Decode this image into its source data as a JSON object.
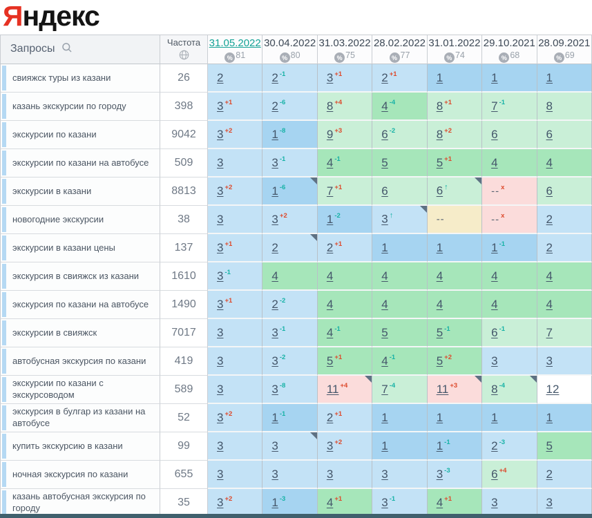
{
  "logo": {
    "first_letter": "Я",
    "rest": "ндекс"
  },
  "colors": {
    "logo_red": "#e63223",
    "selected_date": "#13a295",
    "change_up_teal": "#17b2a6",
    "change_down_red": "#dd4a2c",
    "bg_pos_1": "#a6d4f1",
    "bg_pos_2_3": "#c3e2f6",
    "bg_pos_4_5": "#a6e6ba",
    "bg_pos_6_10": "#c9efd7",
    "bg_dropped": "#fbdcdb",
    "bg_not_found": "#f6ecc9"
  },
  "table": {
    "queries_header": "Запросы",
    "frequency_header": "Частота",
    "dates": [
      {
        "label": "31.05.2022",
        "coverage": "81",
        "selected": true
      },
      {
        "label": "30.04.2022",
        "coverage": "80",
        "selected": false
      },
      {
        "label": "31.03.2022",
        "coverage": "75",
        "selected": false
      },
      {
        "label": "28.02.2022",
        "coverage": "77",
        "selected": false
      },
      {
        "label": "31.01.2022",
        "coverage": "74",
        "selected": false
      },
      {
        "label": "29.10.2021",
        "coverage": "68",
        "selected": false
      },
      {
        "label": "28.09.2021",
        "coverage": "69",
        "selected": false
      }
    ],
    "rows": [
      {
        "query": "свияжск туры из казани",
        "freq": "26",
        "cells": [
          {
            "pos": "2",
            "bg": "b"
          },
          {
            "pos": "2",
            "chg": "-1",
            "dir": "up",
            "bg": "b"
          },
          {
            "pos": "3",
            "chg": "+1",
            "dir": "down",
            "bg": "b"
          },
          {
            "pos": "2",
            "chg": "+1",
            "dir": "down",
            "bg": "b"
          },
          {
            "pos": "1",
            "bg": "B"
          },
          {
            "pos": "1",
            "bg": "B"
          },
          {
            "pos": "1",
            "bg": "B"
          }
        ]
      },
      {
        "query": "казань экскурсии по городу",
        "freq": "398",
        "cells": [
          {
            "pos": "3",
            "chg": "+1",
            "dir": "down",
            "bg": "b"
          },
          {
            "pos": "2",
            "chg": "-6",
            "dir": "up",
            "bg": "b"
          },
          {
            "pos": "8",
            "chg": "+4",
            "dir": "down",
            "bg": "g"
          },
          {
            "pos": "4",
            "chg": "-4",
            "dir": "up",
            "bg": "G"
          },
          {
            "pos": "8",
            "chg": "+1",
            "dir": "down",
            "bg": "g"
          },
          {
            "pos": "7",
            "chg": "-1",
            "dir": "up",
            "bg": "g"
          },
          {
            "pos": "8",
            "bg": "g"
          }
        ]
      },
      {
        "query": "экскурсии по казани",
        "freq": "9042",
        "cells": [
          {
            "pos": "3",
            "chg": "+2",
            "dir": "down",
            "bg": "b"
          },
          {
            "pos": "1",
            "chg": "-8",
            "dir": "up",
            "bg": "B"
          },
          {
            "pos": "9",
            "chg": "+3",
            "dir": "down",
            "bg": "g"
          },
          {
            "pos": "6",
            "chg": "-2",
            "dir": "up",
            "bg": "g"
          },
          {
            "pos": "8",
            "chg": "+2",
            "dir": "down",
            "bg": "g"
          },
          {
            "pos": "6",
            "bg": "g"
          },
          {
            "pos": "6",
            "bg": "g"
          }
        ]
      },
      {
        "query": "экскурсии по казани на автобусе",
        "freq": "509",
        "cells": [
          {
            "pos": "3",
            "bg": "b"
          },
          {
            "pos": "3",
            "chg": "-1",
            "dir": "up",
            "bg": "b"
          },
          {
            "pos": "4",
            "chg": "-1",
            "dir": "up",
            "bg": "G"
          },
          {
            "pos": "5",
            "bg": "G"
          },
          {
            "pos": "5",
            "chg": "+1",
            "dir": "down",
            "bg": "G"
          },
          {
            "pos": "4",
            "bg": "G"
          },
          {
            "pos": "4",
            "bg": "G"
          }
        ]
      },
      {
        "query": "экскурсии в казани",
        "freq": "8813",
        "cells": [
          {
            "pos": "3",
            "chg": "+2",
            "dir": "down",
            "bg": "b"
          },
          {
            "pos": "1",
            "chg": "-6",
            "dir": "up",
            "bg": "B",
            "flag": true
          },
          {
            "pos": "7",
            "chg": "+1",
            "dir": "down",
            "bg": "g"
          },
          {
            "pos": "6",
            "bg": "g"
          },
          {
            "pos": "6",
            "chg": "↑",
            "dir": "up",
            "bg": "g",
            "flag": true
          },
          {
            "pos": "--",
            "chg": "x",
            "dir": "down",
            "bg": "p"
          },
          {
            "pos": "6",
            "bg": "g"
          }
        ]
      },
      {
        "query": "новогодние экскурсии",
        "freq": "38",
        "cells": [
          {
            "pos": "3",
            "bg": "b"
          },
          {
            "pos": "3",
            "chg": "+2",
            "dir": "down",
            "bg": "b"
          },
          {
            "pos": "1",
            "chg": "-2",
            "dir": "up",
            "bg": "B"
          },
          {
            "pos": "3",
            "chg": "↑",
            "dir": "up",
            "bg": "b",
            "flag": true
          },
          {
            "pos": "--",
            "bg": "y"
          },
          {
            "pos": "--",
            "chg": "x",
            "dir": "down",
            "bg": "p"
          },
          {
            "pos": "2",
            "bg": "b"
          }
        ]
      },
      {
        "query": "экскурсии в казани цены",
        "freq": "137",
        "cells": [
          {
            "pos": "3",
            "chg": "+1",
            "dir": "down",
            "bg": "b"
          },
          {
            "pos": "2",
            "bg": "b",
            "flag": true
          },
          {
            "pos": "2",
            "chg": "+1",
            "dir": "down",
            "bg": "b"
          },
          {
            "pos": "1",
            "bg": "B"
          },
          {
            "pos": "1",
            "bg": "B"
          },
          {
            "pos": "1",
            "chg": "-1",
            "dir": "up",
            "bg": "B"
          },
          {
            "pos": "2",
            "bg": "b"
          }
        ]
      },
      {
        "query": "экскурсия в свияжск из казани",
        "freq": "1610",
        "cells": [
          {
            "pos": "3",
            "chg": "-1",
            "dir": "up",
            "bg": "b"
          },
          {
            "pos": "4",
            "bg": "G"
          },
          {
            "pos": "4",
            "bg": "G"
          },
          {
            "pos": "4",
            "bg": "G"
          },
          {
            "pos": "4",
            "bg": "G"
          },
          {
            "pos": "4",
            "bg": "G"
          },
          {
            "pos": "4",
            "bg": "G"
          }
        ]
      },
      {
        "query": "экскурсия по казани на автобусе",
        "freq": "1490",
        "cells": [
          {
            "pos": "3",
            "chg": "+1",
            "dir": "down",
            "bg": "b"
          },
          {
            "pos": "2",
            "chg": "-2",
            "dir": "up",
            "bg": "b"
          },
          {
            "pos": "4",
            "bg": "G"
          },
          {
            "pos": "4",
            "bg": "G"
          },
          {
            "pos": "4",
            "bg": "G"
          },
          {
            "pos": "4",
            "bg": "G"
          },
          {
            "pos": "4",
            "bg": "G"
          }
        ]
      },
      {
        "query": "экскурсии в свияжск",
        "freq": "7017",
        "cells": [
          {
            "pos": "3",
            "bg": "b"
          },
          {
            "pos": "3",
            "chg": "-1",
            "dir": "up",
            "bg": "b"
          },
          {
            "pos": "4",
            "chg": "-1",
            "dir": "up",
            "bg": "G"
          },
          {
            "pos": "5",
            "bg": "G"
          },
          {
            "pos": "5",
            "chg": "-1",
            "dir": "up",
            "bg": "G"
          },
          {
            "pos": "6",
            "chg": "-1",
            "dir": "up",
            "bg": "g"
          },
          {
            "pos": "7",
            "bg": "g"
          }
        ]
      },
      {
        "query": "автобусная экскурсия по казани",
        "freq": "419",
        "cells": [
          {
            "pos": "3",
            "bg": "b"
          },
          {
            "pos": "3",
            "chg": "-2",
            "dir": "up",
            "bg": "b"
          },
          {
            "pos": "5",
            "chg": "+1",
            "dir": "down",
            "bg": "G"
          },
          {
            "pos": "4",
            "chg": "-1",
            "dir": "up",
            "bg": "G"
          },
          {
            "pos": "5",
            "chg": "+2",
            "dir": "down",
            "bg": "G"
          },
          {
            "pos": "3",
            "bg": "b"
          },
          {
            "pos": "3",
            "bg": "b"
          }
        ]
      },
      {
        "query": "экскурсии по казани с экскурсоводом",
        "freq": "589",
        "cells": [
          {
            "pos": "3",
            "bg": "b"
          },
          {
            "pos": "3",
            "chg": "-8",
            "dir": "up",
            "bg": "b"
          },
          {
            "pos": "11",
            "chg": "+4",
            "dir": "down",
            "bg": "p",
            "flag": true
          },
          {
            "pos": "7",
            "chg": "-4",
            "dir": "up",
            "bg": "g"
          },
          {
            "pos": "11",
            "chg": "+3",
            "dir": "down",
            "bg": "p",
            "flag": true
          },
          {
            "pos": "8",
            "chg": "-4",
            "dir": "up",
            "bg": "g",
            "flag": true
          },
          {
            "pos": "12",
            "bg": "w"
          }
        ]
      },
      {
        "query": "экскурсия в булгар из казани на автобусе",
        "freq": "52",
        "cells": [
          {
            "pos": "3",
            "chg": "+2",
            "dir": "down",
            "bg": "b"
          },
          {
            "pos": "1",
            "chg": "-1",
            "dir": "up",
            "bg": "B"
          },
          {
            "pos": "2",
            "chg": "+1",
            "dir": "down",
            "bg": "b"
          },
          {
            "pos": "1",
            "bg": "B"
          },
          {
            "pos": "1",
            "bg": "B"
          },
          {
            "pos": "1",
            "bg": "B"
          },
          {
            "pos": "1",
            "bg": "B"
          }
        ]
      },
      {
        "query": "купить экскурсию в казани",
        "freq": "99",
        "cells": [
          {
            "pos": "3",
            "bg": "b"
          },
          {
            "pos": "3",
            "bg": "b",
            "flag": true
          },
          {
            "pos": "3",
            "chg": "+2",
            "dir": "down",
            "bg": "b"
          },
          {
            "pos": "1",
            "bg": "B"
          },
          {
            "pos": "1",
            "chg": "-1",
            "dir": "up",
            "bg": "B"
          },
          {
            "pos": "2",
            "chg": "-3",
            "dir": "up",
            "bg": "b"
          },
          {
            "pos": "5",
            "bg": "G"
          }
        ]
      },
      {
        "query": "ночная экскурсия по казани",
        "freq": "655",
        "cells": [
          {
            "pos": "3",
            "bg": "b"
          },
          {
            "pos": "3",
            "bg": "b"
          },
          {
            "pos": "3",
            "bg": "b"
          },
          {
            "pos": "3",
            "bg": "b"
          },
          {
            "pos": "3",
            "chg": "-3",
            "dir": "up",
            "bg": "b"
          },
          {
            "pos": "6",
            "chg": "+4",
            "dir": "down",
            "bg": "g"
          },
          {
            "pos": "2",
            "bg": "b"
          }
        ]
      },
      {
        "query": "казань автобусная экскурсия по городу",
        "freq": "35",
        "cells": [
          {
            "pos": "3",
            "chg": "+2",
            "dir": "down",
            "bg": "b"
          },
          {
            "pos": "1",
            "chg": "-3",
            "dir": "up",
            "bg": "B"
          },
          {
            "pos": "4",
            "chg": "+1",
            "dir": "down",
            "bg": "G"
          },
          {
            "pos": "3",
            "chg": "-1",
            "dir": "up",
            "bg": "b"
          },
          {
            "pos": "4",
            "chg": "+1",
            "dir": "down",
            "bg": "G"
          },
          {
            "pos": "3",
            "bg": "b"
          },
          {
            "pos": "3",
            "bg": "b"
          }
        ]
      }
    ]
  }
}
